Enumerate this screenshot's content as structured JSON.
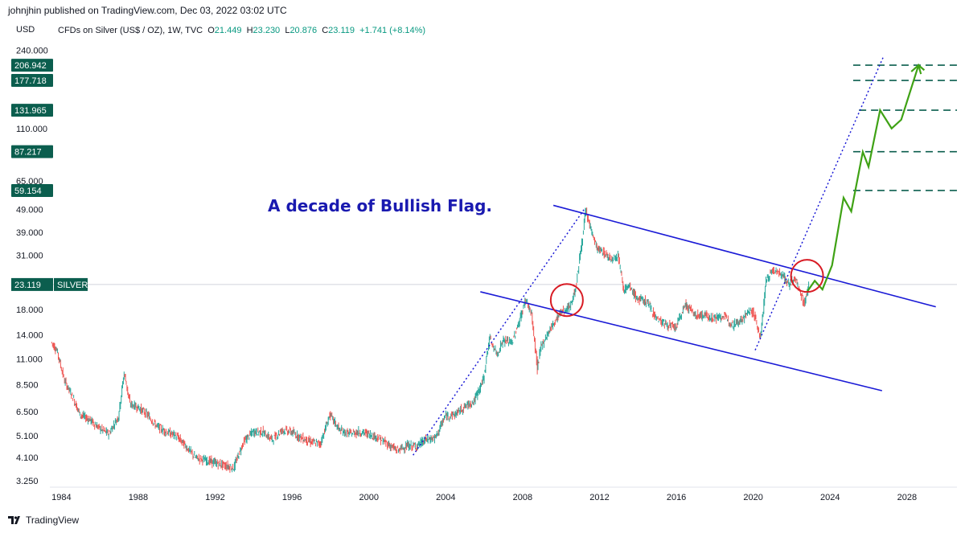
{
  "header": {
    "publisher": "johnjhin published on TradingView.com, Dec 03, 2022 03:02 UTC"
  },
  "currency": "USD",
  "legend": {
    "symbol": "CFDs on Silver (US$ / OZ), 1W, TVC",
    "o_label": "O",
    "o_value": "21.449",
    "h_label": "H",
    "h_value": "23.230",
    "l_label": "L",
    "l_value": "20.876",
    "c_label": "C",
    "c_value": "23.119",
    "change": "+1.741 (+8.14%)"
  },
  "footer": {
    "brand": "TradingView"
  },
  "chart_data": {
    "type": "line",
    "title": "",
    "symbol": "SILVER",
    "last_price": 23.119,
    "y_scale": "log",
    "ylim": [
      3.1,
      270
    ],
    "xlim": [
      1983.4,
      2030.6
    ],
    "y_ticks": [
      "3.250",
      "4.100",
      "5.100",
      "6.500",
      "8.500",
      "11.000",
      "14.000",
      "18.000",
      "23.119",
      "31.000",
      "39.000",
      "49.000",
      "59.154",
      "65.000",
      "87.217",
      "110.000",
      "131.965",
      "177.718",
      "206.942",
      "240.000"
    ],
    "y_tick_values": [
      3.25,
      4.1,
      5.1,
      6.5,
      8.5,
      11,
      14,
      18,
      23.119,
      31,
      39,
      49,
      59.154,
      65,
      87.217,
      110,
      131.965,
      177.718,
      206.942,
      240
    ],
    "badges": [
      {
        "value": 206.942,
        "label": "206.942"
      },
      {
        "value": 177.718,
        "label": "177.718"
      },
      {
        "value": 131.965,
        "label": "131.965"
      },
      {
        "value": 87.217,
        "label": "87.217"
      },
      {
        "value": 59.154,
        "label": "59.154"
      }
    ],
    "last_badge": {
      "value": 23.119,
      "label": "23.119",
      "symbol": "SILVER"
    },
    "x_ticks": [
      "1984",
      "1988",
      "1992",
      "1996",
      "2000",
      "2004",
      "2008",
      "2012",
      "2016",
      "2020",
      "2024",
      "2028"
    ],
    "x_tick_values": [
      1984,
      1988,
      1992,
      1996,
      2000,
      2004,
      2008,
      2012,
      2016,
      2020,
      2024,
      2028
    ],
    "price_series": {
      "x": [
        1983.5,
        1983.8,
        1984.2,
        1984.6,
        1985.0,
        1985.5,
        1986.0,
        1986.5,
        1987.0,
        1987.3,
        1987.6,
        1988.0,
        1988.5,
        1989.0,
        1989.5,
        1990.0,
        1990.5,
        1991.0,
        1991.5,
        1992.0,
        1992.5,
        1993.0,
        1993.5,
        1994.0,
        1994.5,
        1995.0,
        1995.5,
        1996.0,
        1996.5,
        1997.0,
        1997.5,
        1998.0,
        1998.5,
        1999.0,
        1999.5,
        2000.0,
        2000.5,
        2001.0,
        2001.5,
        2002.0,
        2002.5,
        2003.0,
        2003.5,
        2004.0,
        2004.5,
        2005.0,
        2005.5,
        2006.0,
        2006.3,
        2006.7,
        2007.0,
        2007.5,
        2008.0,
        2008.2,
        2008.5,
        2008.8,
        2009.0,
        2009.5,
        2010.0,
        2010.5,
        2010.8,
        2011.0,
        2011.2,
        2011.3,
        2011.6,
        2011.9,
        2012.2,
        2012.6,
        2013.0,
        2013.3,
        2013.6,
        2014.0,
        2014.5,
        2015.0,
        2015.5,
        2016.0,
        2016.5,
        2017.0,
        2017.5,
        2018.0,
        2018.5,
        2019.0,
        2019.5,
        2019.9,
        2020.1,
        2020.4,
        2020.7,
        2021.0,
        2021.3,
        2021.6,
        2021.9,
        2022.2,
        2022.5,
        2022.7,
        2022.92
      ],
      "y": [
        13.0,
        12.0,
        8.8,
        7.6,
        6.3,
        6.0,
        5.5,
        5.2,
        6.2,
        9.6,
        7.0,
        6.8,
        6.3,
        5.6,
        5.3,
        5.1,
        4.6,
        4.1,
        4.0,
        3.9,
        3.8,
        3.7,
        4.8,
        5.3,
        5.3,
        4.9,
        5.4,
        5.3,
        5.0,
        4.8,
        4.7,
        6.3,
        5.4,
        5.2,
        5.3,
        5.2,
        5.0,
        4.7,
        4.4,
        4.6,
        4.6,
        4.9,
        5.0,
        6.2,
        6.3,
        6.8,
        7.2,
        9.0,
        13.5,
        11.5,
        13.2,
        13.0,
        17.5,
        20.0,
        17.0,
        10.0,
        12.5,
        15.0,
        17.5,
        18.5,
        22.5,
        30.0,
        40.0,
        48.0,
        40.0,
        33.0,
        32.0,
        30.0,
        31.0,
        22.0,
        22.5,
        20.0,
        19.5,
        16.5,
        15.5,
        15.0,
        19.0,
        17.0,
        17.0,
        16.5,
        16.8,
        15.5,
        16.5,
        18.0,
        17.0,
        13.5,
        24.0,
        26.5,
        26.5,
        25.0,
        23.0,
        24.5,
        21.0,
        19.0,
        23.119
      ]
    },
    "upper_channel": {
      "x": [
        2009.6,
        2029.5
      ],
      "y": [
        51.0,
        18.5
      ]
    },
    "lower_channel": {
      "x": [
        2005.8,
        2026.7
      ],
      "y": [
        21.5,
        8.0
      ]
    },
    "dotted_line_1": {
      "x": [
        2002.3,
        2011.2
      ],
      "y": [
        4.2,
        49.0
      ]
    },
    "dotted_line_2": {
      "x": [
        2020.1,
        2026.8
      ],
      "y": [
        12.0,
        228.0
      ]
    },
    "projection": {
      "x": [
        2022.8,
        2023.2,
        2023.6,
        2024.1,
        2024.7,
        2025.1,
        2025.7,
        2026.0,
        2026.6,
        2027.2,
        2027.7,
        2028.6,
        2028.9
      ],
      "y": [
        21.5,
        24.0,
        22.0,
        28.0,
        55.0,
        48.0,
        87.0,
        75.0,
        132.0,
        110.0,
        120.0,
        206.942,
        197.0
      ]
    },
    "target_lines": [
      {
        "value": 206.942,
        "x_start": 2025.2
      },
      {
        "value": 177.718,
        "x_start": 2025.2
      },
      {
        "value": 131.965,
        "x_start": 2025.5
      },
      {
        "value": 87.217,
        "x_start": 2025.2
      },
      {
        "value": 59.154,
        "x_start": 2025.2
      }
    ],
    "circles": [
      {
        "x": 2010.3,
        "y": 19.8
      },
      {
        "x": 2022.8,
        "y": 25.2
      }
    ],
    "annotation": "A decade of Bullish Flag.",
    "colors": {
      "up": "#26a69a",
      "down": "#ef5350",
      "channel": "#1a1ad6",
      "projection": "#3fa215",
      "target": "#0b5e4e",
      "circle": "#d81b24",
      "annotation": "#1a1ab0",
      "badge": "#0b5e4e"
    }
  }
}
